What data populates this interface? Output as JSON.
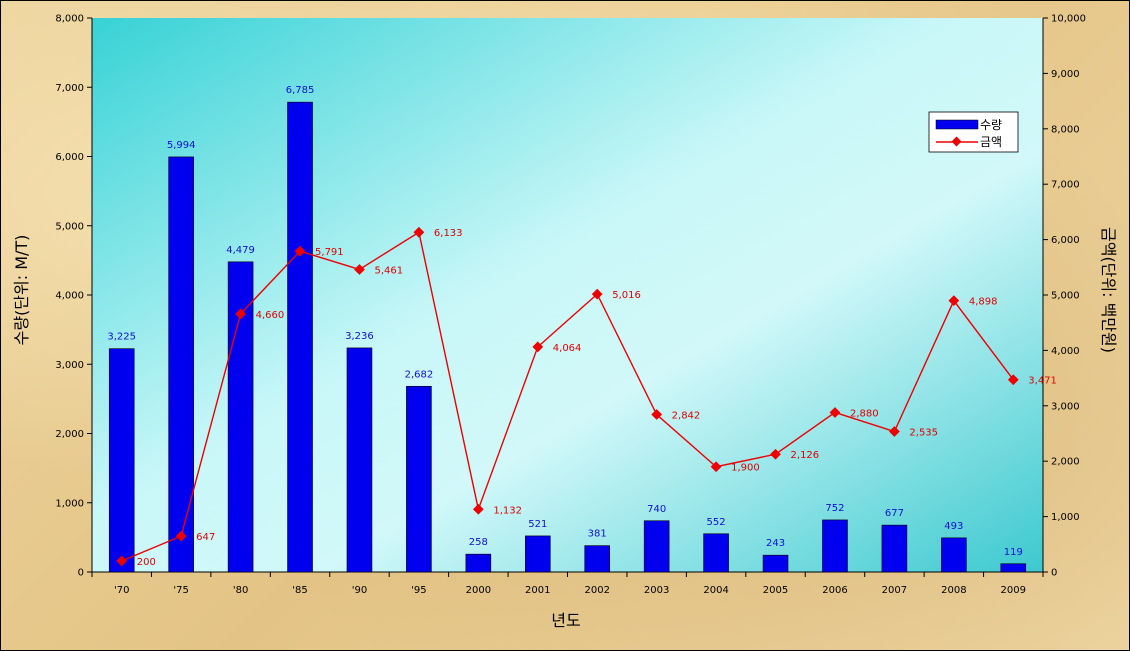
{
  "chart_data": {
    "type": "bar",
    "categories": [
      "'70",
      "'75",
      "'80",
      "'85",
      "'90",
      "'95",
      "2000",
      "2001",
      "2002",
      "2003",
      "2004",
      "2005",
      "2006",
      "2007",
      "2008",
      "2009"
    ],
    "series": [
      {
        "name": "수량",
        "type": "bar",
        "axis": "left",
        "color": "#0000ee",
        "values": [
          3225,
          5994,
          4479,
          6785,
          3236,
          2682,
          258,
          521,
          381,
          740,
          552,
          243,
          752,
          677,
          493,
          119
        ],
        "labels": [
          "3,225",
          "5,994",
          "4,479",
          "6,785",
          "3,236",
          "2,682",
          "258",
          "521",
          "381",
          "740",
          "552",
          "243",
          "752",
          "677",
          "493",
          "119"
        ]
      },
      {
        "name": "금액",
        "type": "line",
        "axis": "right",
        "color": "#ee0000",
        "values": [
          200,
          647,
          4660,
          5791,
          5461,
          6133,
          1132,
          4064,
          5016,
          2842,
          1900,
          2126,
          2880,
          2535,
          4898,
          3471
        ],
        "labels": [
          "200",
          "647",
          "4,660",
          "5,791",
          "5,461",
          "6,133",
          "1,132",
          "4,064",
          "5,016",
          "2,842",
          "1,900",
          "2,126",
          "2,880",
          "2,535",
          "4,898",
          "3,471"
        ]
      }
    ],
    "xlabel": "년도",
    "ylabel": "수량(단위: M/T)",
    "y2label": "금액(단위: 백만원)",
    "ylim": [
      0,
      8000
    ],
    "y2lim": [
      0,
      10000
    ],
    "yticks": [
      "0",
      "1,000",
      "2,000",
      "3,000",
      "4,000",
      "5,000",
      "6,000",
      "7,000",
      "8,000"
    ],
    "y2ticks": [
      "0",
      "1,000",
      "2,000",
      "3,000",
      "4,000",
      "5,000",
      "6,000",
      "7,000",
      "8,000",
      "9,000",
      "10,000"
    ],
    "grid": false,
    "legend": "top-right"
  }
}
